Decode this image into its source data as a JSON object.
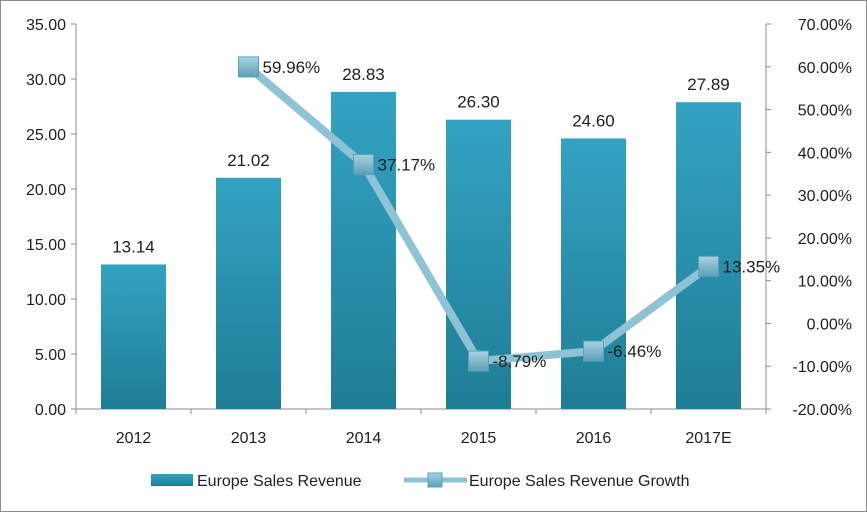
{
  "chart_data": {
    "type": "bar",
    "categories": [
      "2012",
      "2013",
      "2014",
      "2015",
      "2016",
      "2017E"
    ],
    "series": [
      {
        "name": "Europe Sales Revenue",
        "kind": "bar",
        "axis": "left",
        "values": [
          13.14,
          21.02,
          28.83,
          26.3,
          24.6,
          27.89
        ],
        "labels": [
          "13.14",
          "21.02",
          "28.83",
          "26.30",
          "24.60",
          "27.89"
        ],
        "color": "#2e9ab8"
      },
      {
        "name": "Europe Sales Revenue Growth",
        "kind": "line",
        "axis": "right",
        "values": [
          null,
          59.96,
          37.17,
          -8.79,
          -6.46,
          13.35
        ],
        "labels": [
          null,
          "59.96%",
          "37.17%",
          "-8.79%",
          "-6.46%",
          "13.35%"
        ],
        "color": "#8ec3d6",
        "marker_color": "#6fb0c9"
      }
    ],
    "y_left": {
      "ylim": [
        0,
        35
      ],
      "ticks": [
        0,
        5,
        10,
        15,
        20,
        25,
        30,
        35
      ],
      "tick_labels": [
        "0.00",
        "5.00",
        "10.00",
        "15.00",
        "20.00",
        "25.00",
        "30.00",
        "35.00"
      ]
    },
    "y_right": {
      "ylim": [
        -20,
        70
      ],
      "ticks": [
        -20,
        -10,
        0,
        10,
        20,
        30,
        40,
        50,
        60,
        70
      ],
      "tick_labels": [
        "-20.00%",
        "-10.00%",
        "0.00%",
        "10.00%",
        "20.00%",
        "30.00%",
        "40.00%",
        "50.00%",
        "60.00%",
        "70.00%"
      ]
    },
    "title": "",
    "xlabel": "",
    "ylabel": "",
    "grid": false,
    "legend": {
      "position": "bottom",
      "entries": [
        "Europe Sales Revenue",
        "Europe Sales Revenue Growth"
      ]
    }
  }
}
